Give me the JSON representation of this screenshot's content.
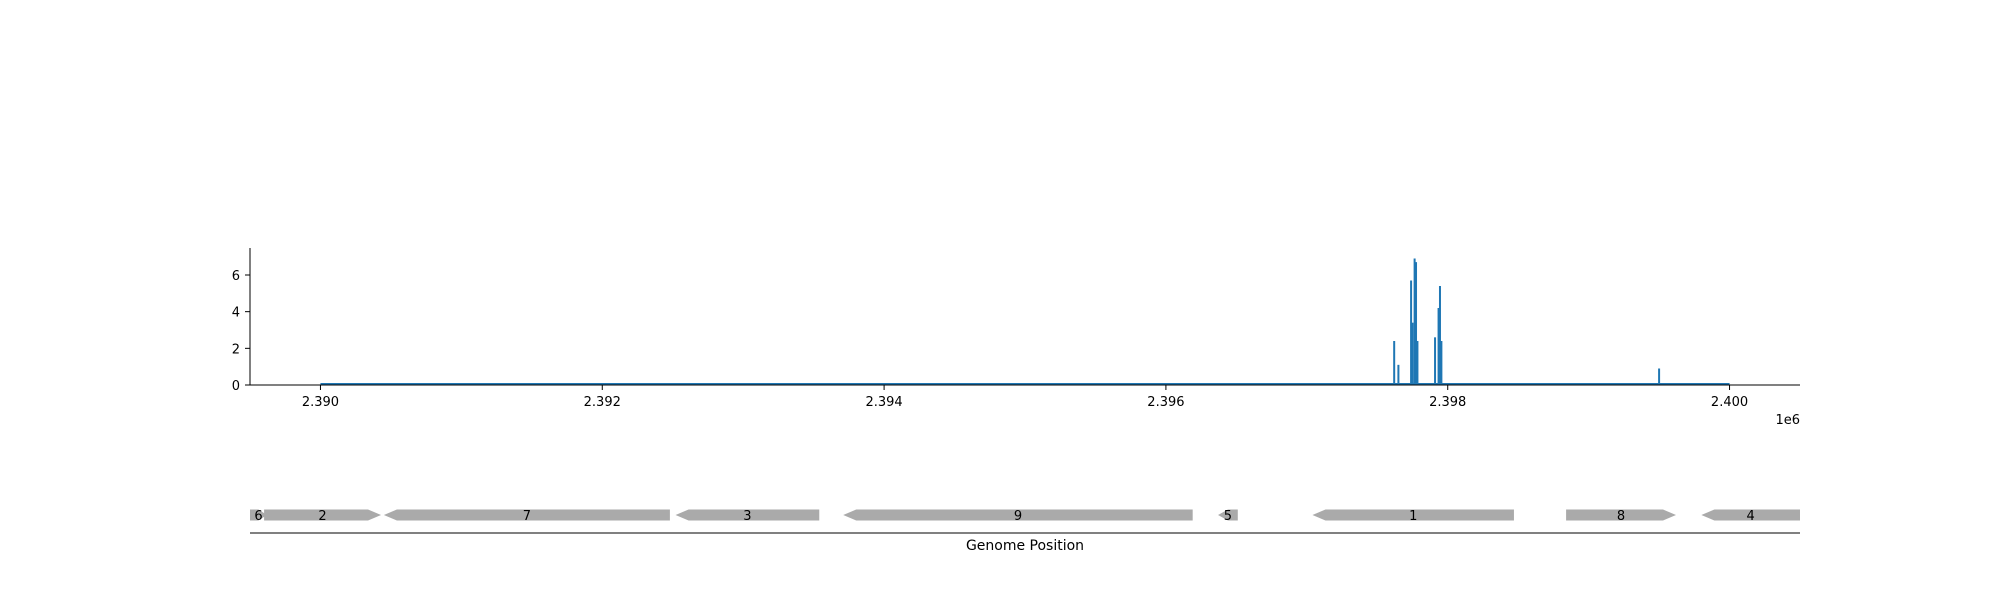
{
  "chart_data": [
    {
      "type": "line",
      "x_offset_label": "1e6",
      "xlim": [
        2389500,
        2400500
      ],
      "ylim": [
        0,
        7.5
      ],
      "x_ticks": [
        2390000,
        2392000,
        2394000,
        2396000,
        2398000,
        2400000
      ],
      "x_tick_labels": [
        "2.390",
        "2.392",
        "2.394",
        "2.396",
        "2.398",
        "2.400"
      ],
      "y_ticks": [
        0,
        2,
        4,
        6
      ],
      "y_tick_labels": [
        "0",
        "2",
        "4",
        "6"
      ],
      "color": "#1f77b4",
      "baseline_x": [
        2390000,
        2400000
      ],
      "spikes": [
        {
          "x": 2397620,
          "y": 2.4
        },
        {
          "x": 2397650,
          "y": 1.1
        },
        {
          "x": 2397740,
          "y": 5.7
        },
        {
          "x": 2397750,
          "y": 3.4
        },
        {
          "x": 2397765,
          "y": 6.9
        },
        {
          "x": 2397775,
          "y": 6.7
        },
        {
          "x": 2397785,
          "y": 2.4
        },
        {
          "x": 2397910,
          "y": 2.6
        },
        {
          "x": 2397935,
          "y": 4.2
        },
        {
          "x": 2397945,
          "y": 5.4
        },
        {
          "x": 2397955,
          "y": 2.4
        },
        {
          "x": 2399500,
          "y": 0.9
        }
      ]
    },
    {
      "type": "gene_map",
      "xlabel": "Genome Position",
      "xlim": [
        2389500,
        2400500
      ],
      "color": "#aaaaaa",
      "genes": [
        {
          "label": "6",
          "start": 2389500,
          "end": 2389620,
          "strand": "+"
        },
        {
          "label": "2",
          "start": 2389600,
          "end": 2390430,
          "strand": "+"
        },
        {
          "label": "7",
          "start": 2390450,
          "end": 2392480,
          "strand": "-"
        },
        {
          "label": "3",
          "start": 2392520,
          "end": 2393540,
          "strand": "-"
        },
        {
          "label": "9",
          "start": 2393710,
          "end": 2396190,
          "strand": "-"
        },
        {
          "label": "5",
          "start": 2396370,
          "end": 2396510,
          "strand": "-"
        },
        {
          "label": "1",
          "start": 2397040,
          "end": 2398470,
          "strand": "-"
        },
        {
          "label": "8",
          "start": 2398840,
          "end": 2399620,
          "strand": "+"
        },
        {
          "label": "4",
          "start": 2399800,
          "end": 2400500,
          "strand": "-"
        }
      ]
    }
  ]
}
